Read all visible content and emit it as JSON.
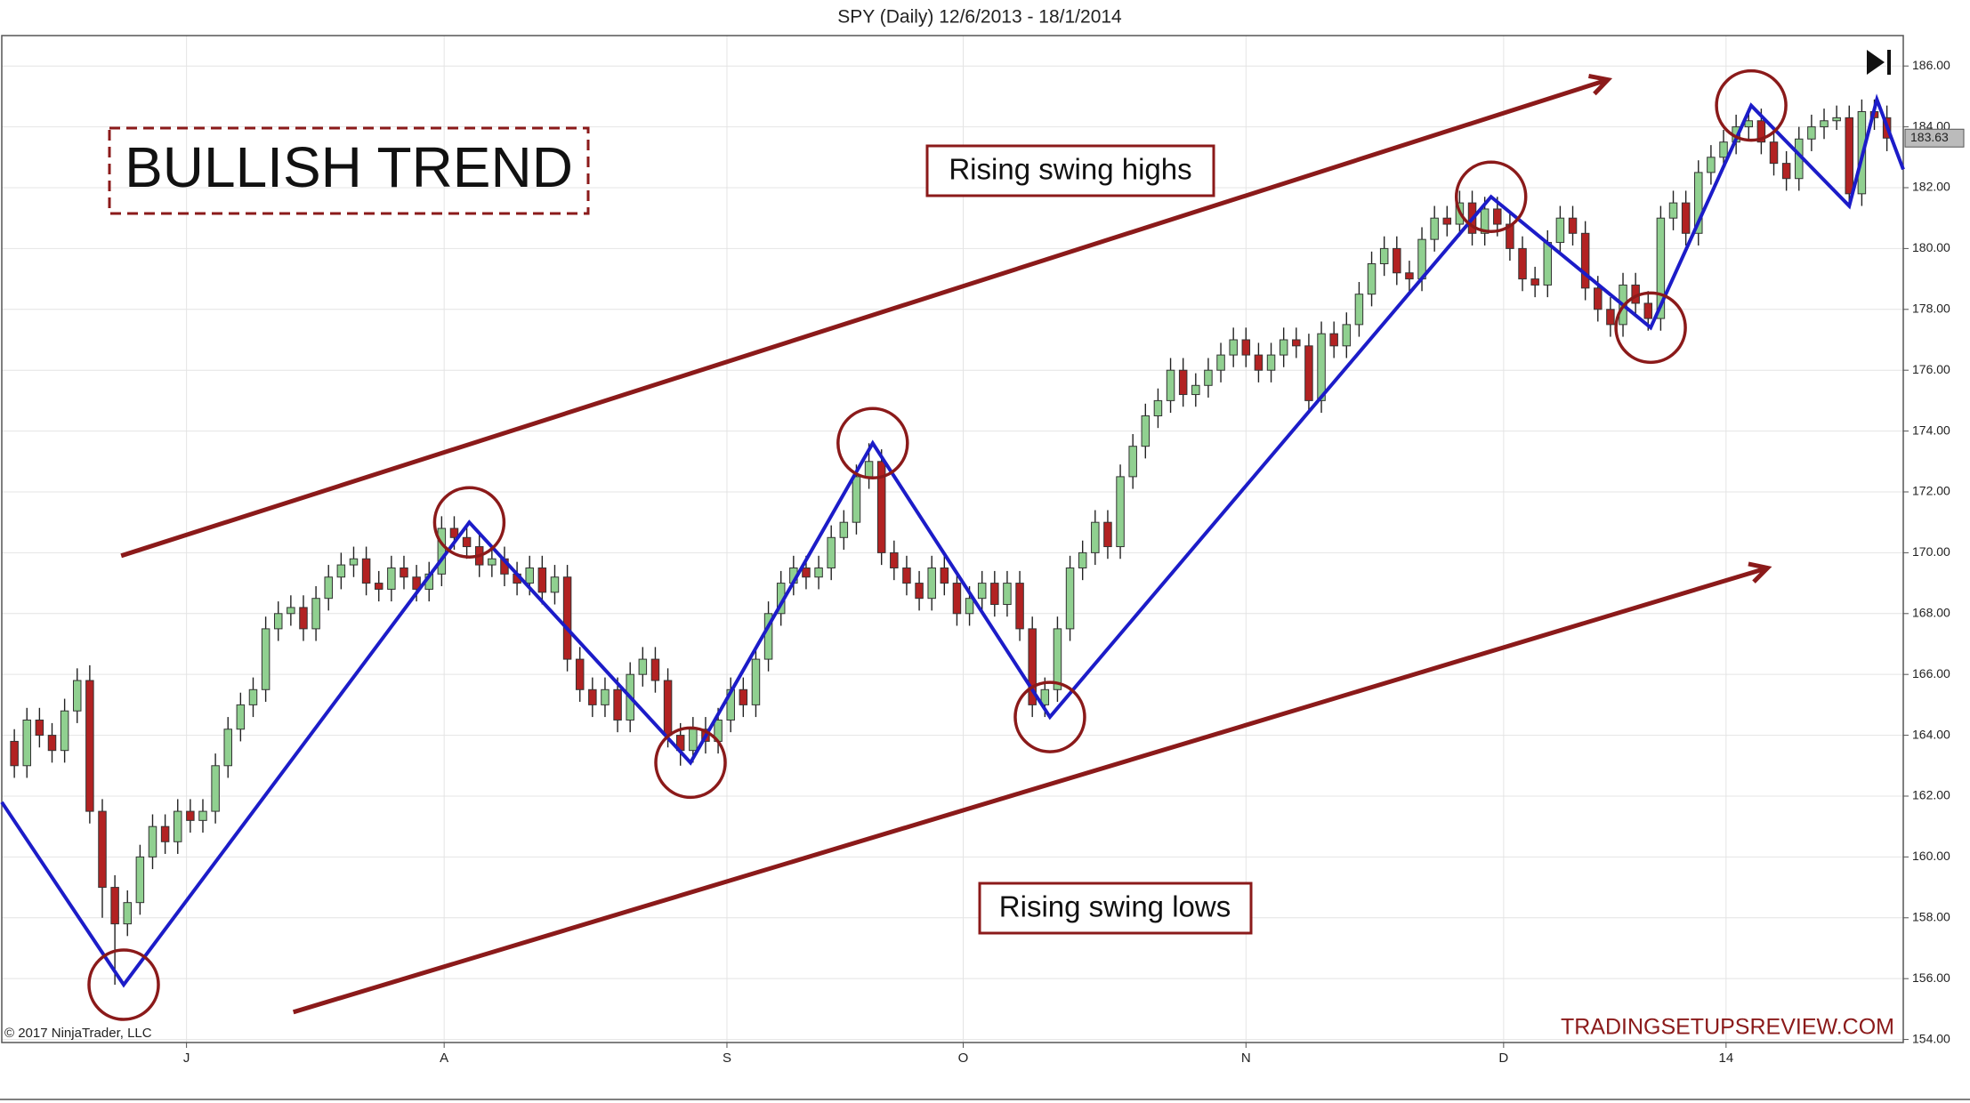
{
  "chart_data": {
    "type": "candlestick",
    "title": "SPY (Daily)  12/6/2013 - 18/1/2014",
    "up_color": "#90d090",
    "down_color": "#b22222",
    "grid": true,
    "xlim": [
      -1,
      150.3
    ],
    "ylim": [
      153.9,
      187
    ],
    "xticks": [
      {
        "value": 13.7,
        "label": "J"
      },
      {
        "value": 34.2,
        "label": "A"
      },
      {
        "value": 56.7,
        "label": "S"
      },
      {
        "value": 75.5,
        "label": "O"
      },
      {
        "value": 98,
        "label": "N"
      },
      {
        "value": 118.5,
        "label": "D"
      },
      {
        "value": 136.2,
        "label": "14"
      }
    ],
    "yticks": [
      {
        "value": 154,
        "label": "154.00"
      },
      {
        "value": 156,
        "label": "156.00"
      },
      {
        "value": 158,
        "label": "158.00"
      },
      {
        "value": 160,
        "label": "160.00"
      },
      {
        "value": 162,
        "label": "162.00"
      },
      {
        "value": 164,
        "label": "164.00"
      },
      {
        "value": 166,
        "label": "166.00"
      },
      {
        "value": 168,
        "label": "168.00"
      },
      {
        "value": 170,
        "label": "170.00"
      },
      {
        "value": 172,
        "label": "172.00"
      },
      {
        "value": 174,
        "label": "174.00"
      },
      {
        "value": 176,
        "label": "176.00"
      },
      {
        "value": 178,
        "label": "178.00"
      },
      {
        "value": 180,
        "label": "180.00"
      },
      {
        "value": 182,
        "label": "182.00"
      },
      {
        "value": 184,
        "label": "184.00"
      },
      {
        "value": 186,
        "label": "186.00"
      }
    ],
    "last_price": 183.63,
    "open": [
      163.8,
      163.0,
      164.5,
      164.0,
      163.5,
      164.8,
      165.8,
      161.5,
      159.0,
      157.8,
      158.5,
      160.0,
      161.0,
      160.5,
      161.5,
      161.2,
      161.5,
      163.0,
      164.2,
      165.0,
      165.5,
      167.5,
      168.0,
      168.2,
      167.5,
      168.5,
      169.2,
      169.6,
      169.8,
      169.0,
      168.8,
      169.5,
      169.2,
      168.8,
      169.3,
      170.8,
      170.5,
      170.2,
      169.6,
      169.8,
      169.3,
      169.0,
      169.5,
      168.7,
      169.2,
      166.5,
      165.5,
      165.0,
      165.5,
      164.5,
      166.0,
      166.5,
      165.8,
      164.0,
      163.5,
      164.2,
      163.8,
      164.5,
      165.5,
      165.0,
      166.5,
      168.0,
      169.0,
      169.5,
      169.2,
      169.5,
      170.5,
      171.0,
      172.5,
      173.0,
      170.0,
      169.5,
      169.0,
      168.5,
      169.5,
      169.0,
      168.0,
      168.5,
      169.0,
      168.3,
      169.0,
      167.5,
      165.0,
      165.5,
      167.5,
      169.5,
      170.0,
      171.0,
      170.2,
      172.5,
      173.5,
      174.5,
      175.0,
      176.0,
      175.2,
      175.5,
      176.0,
      176.5,
      177.0,
      176.5,
      176.0,
      176.5,
      177.0,
      176.8,
      175.0,
      177.2,
      176.8,
      177.5,
      178.5,
      179.5,
      180.0,
      179.2,
      179.0,
      180.3,
      181.0,
      180.8,
      181.5,
      180.5,
      181.3,
      180.8,
      180.0,
      179.0,
      178.8,
      180.2,
      181.0,
      180.5,
      178.7,
      178.0,
      177.5,
      178.8,
      178.2,
      177.7,
      181.0,
      181.5,
      180.5,
      182.5,
      183.0,
      183.5,
      184.0,
      184.2,
      183.5,
      182.8,
      182.3,
      183.6,
      184.0,
      184.2,
      184.3,
      181.8,
      184.5,
      184.3
    ],
    "high": [
      164.2,
      164.9,
      164.9,
      164.4,
      165.2,
      166.2,
      166.3,
      161.9,
      159.4,
      158.9,
      160.4,
      161.4,
      161.4,
      161.9,
      161.9,
      161.9,
      163.4,
      164.6,
      165.4,
      165.9,
      167.9,
      168.4,
      168.6,
      168.6,
      168.9,
      169.6,
      170.0,
      170.2,
      170.2,
      169.4,
      169.9,
      169.9,
      169.6,
      169.7,
      171.2,
      171.2,
      170.9,
      170.6,
      170.2,
      170.2,
      169.7,
      169.9,
      169.9,
      169.6,
      169.6,
      166.9,
      165.9,
      165.9,
      165.9,
      166.4,
      166.9,
      166.9,
      166.2,
      164.4,
      164.6,
      164.6,
      164.9,
      165.9,
      165.9,
      166.9,
      168.4,
      169.4,
      169.9,
      169.9,
      169.9,
      170.9,
      171.4,
      172.9,
      173.6,
      173.4,
      170.4,
      169.9,
      169.4,
      169.9,
      169.9,
      169.4,
      168.9,
      169.4,
      169.4,
      169.4,
      169.4,
      167.9,
      165.9,
      167.9,
      169.9,
      170.4,
      171.4,
      171.4,
      172.9,
      173.9,
      174.9,
      175.4,
      176.4,
      176.4,
      175.9,
      176.4,
      176.9,
      177.4,
      177.4,
      176.9,
      176.9,
      177.4,
      177.4,
      177.2,
      177.6,
      177.6,
      177.9,
      178.9,
      179.9,
      180.4,
      180.4,
      179.6,
      180.7,
      181.4,
      181.4,
      181.9,
      181.9,
      181.7,
      181.7,
      181.2,
      180.4,
      179.4,
      180.6,
      181.4,
      181.4,
      180.9,
      179.1,
      178.4,
      179.2,
      179.2,
      178.6,
      181.4,
      181.9,
      181.9,
      182.9,
      183.4,
      183.9,
      184.4,
      184.6,
      184.6,
      183.9,
      183.2,
      184.0,
      184.4,
      184.6,
      184.7,
      184.7,
      184.9,
      184.9,
      184.7
    ],
    "low": [
      162.6,
      162.6,
      163.6,
      163.1,
      163.1,
      164.4,
      161.1,
      158.0,
      155.8,
      157.4,
      158.1,
      159.6,
      160.1,
      160.1,
      160.8,
      160.8,
      161.1,
      162.6,
      163.8,
      164.6,
      165.1,
      167.1,
      167.6,
      167.1,
      167.1,
      168.1,
      168.8,
      169.2,
      168.6,
      168.4,
      168.4,
      168.8,
      168.4,
      168.4,
      168.9,
      170.1,
      169.8,
      169.2,
      169.2,
      168.9,
      168.6,
      168.6,
      168.3,
      168.3,
      166.1,
      165.1,
      164.6,
      164.6,
      164.1,
      164.1,
      165.6,
      165.4,
      163.6,
      163.0,
      163.1,
      163.4,
      163.4,
      164.1,
      164.6,
      164.6,
      166.1,
      167.6,
      168.6,
      168.8,
      168.8,
      169.1,
      170.1,
      170.6,
      172.1,
      169.6,
      169.1,
      168.6,
      168.1,
      168.1,
      168.6,
      167.6,
      167.6,
      168.1,
      167.9,
      167.9,
      167.1,
      164.6,
      164.6,
      165.1,
      167.1,
      169.1,
      169.6,
      169.8,
      169.8,
      172.1,
      173.1,
      174.1,
      174.6,
      174.8,
      174.8,
      175.1,
      175.6,
      176.1,
      176.1,
      175.6,
      175.6,
      176.1,
      176.4,
      174.6,
      174.6,
      176.4,
      176.4,
      177.1,
      178.1,
      179.1,
      178.8,
      178.6,
      178.6,
      179.9,
      180.4,
      180.4,
      180.1,
      180.1,
      180.4,
      179.6,
      178.6,
      178.4,
      178.4,
      179.8,
      180.1,
      178.3,
      177.6,
      177.1,
      177.1,
      177.8,
      177.3,
      177.3,
      180.6,
      180.1,
      180.1,
      182.1,
      182.6,
      183.1,
      183.6,
      183.1,
      182.4,
      181.9,
      181.9,
      183.2,
      183.6,
      183.9,
      181.4,
      181.4,
      183.9,
      183.2
    ],
    "close": [
      163.0,
      164.5,
      164.0,
      163.5,
      164.8,
      165.8,
      161.5,
      159.0,
      157.8,
      158.5,
      160.0,
      161.0,
      160.5,
      161.5,
      161.2,
      161.5,
      163.0,
      164.2,
      165.0,
      165.5,
      167.5,
      168.0,
      168.2,
      167.5,
      168.5,
      169.2,
      169.6,
      169.8,
      169.0,
      168.8,
      169.5,
      169.2,
      168.8,
      169.3,
      170.8,
      170.5,
      170.2,
      169.6,
      169.8,
      169.3,
      169.0,
      169.5,
      168.7,
      169.2,
      166.5,
      165.5,
      165.0,
      165.5,
      164.5,
      166.0,
      166.5,
      165.8,
      164.0,
      163.5,
      164.2,
      163.8,
      164.5,
      165.5,
      165.0,
      166.5,
      168.0,
      169.0,
      169.5,
      169.2,
      169.5,
      170.5,
      171.0,
      172.5,
      173.0,
      170.0,
      169.5,
      169.0,
      168.5,
      169.5,
      169.0,
      168.0,
      168.5,
      169.0,
      168.3,
      169.0,
      167.5,
      165.0,
      165.5,
      167.5,
      169.5,
      170.0,
      171.0,
      170.2,
      172.5,
      173.5,
      174.5,
      175.0,
      176.0,
      175.2,
      175.5,
      176.0,
      176.5,
      177.0,
      176.5,
      176.0,
      176.5,
      177.0,
      176.8,
      175.0,
      177.2,
      176.8,
      177.5,
      178.5,
      179.5,
      180.0,
      179.2,
      179.0,
      180.3,
      181.0,
      180.8,
      181.5,
      180.5,
      181.3,
      180.8,
      180.0,
      179.0,
      178.8,
      180.2,
      181.0,
      180.5,
      178.7,
      178.0,
      177.5,
      178.8,
      178.2,
      177.7,
      181.0,
      181.5,
      180.5,
      182.5,
      183.0,
      183.5,
      184.0,
      184.2,
      183.5,
      182.8,
      182.3,
      183.6,
      184.0,
      184.2,
      184.3,
      181.8,
      184.5,
      184.3,
      183.63
    ],
    "zigzag": {
      "color": "#1c1cc8",
      "x": [
        -1,
        8.7,
        36.2,
        53.8,
        68.3,
        82.4,
        117.5,
        130.2,
        138.2,
        146,
        148.2,
        150.3
      ],
      "y": [
        161.8,
        155.8,
        171,
        163.1,
        173.6,
        164.6,
        181.7,
        177.4,
        184.7,
        181.4,
        184.9,
        182.6
      ]
    },
    "trend_lines": [
      {
        "color": "#8b1a1a",
        "x": [
          8.5,
          126.8
        ],
        "y": [
          169.9,
          185.55
        ]
      },
      {
        "color": "#8b1a1a",
        "x": [
          22.2,
          139.5
        ],
        "y": [
          154.9,
          169.5
        ]
      }
    ],
    "annotations": {
      "trend_label": "BULLISH TREND",
      "highs_label": "Rising swing highs",
      "lows_label": "Rising swing lows",
      "watermark": "TRADINGSETUPSREVIEW.COM",
      "copyright": "© 2017 NinjaTrader, LLC"
    }
  }
}
